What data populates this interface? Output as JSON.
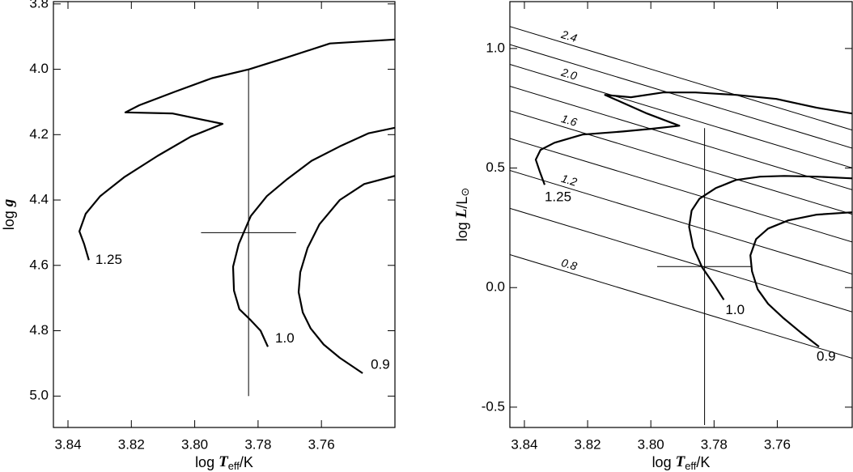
{
  "chart_data": [
    {
      "type": "line",
      "xlabel": {
        "pre": "log ",
        "var": "T",
        "sub": "eff",
        "post": "/K"
      },
      "ylabel": {
        "pre": "log ",
        "var": "g"
      },
      "xlim": [
        3.8446,
        3.7368
      ],
      "ylim": [
        5.096,
        3.793
      ],
      "xticks": [
        3.84,
        3.82,
        {
          "value": 3.8,
          "label": "3.80"
        },
        3.78,
        3.76
      ],
      "yticks": [
        3.8,
        {
          "value": 4,
          "label": "4.0"
        },
        4.2,
        4.4,
        4.6,
        4.8,
        {
          "value": 5,
          "label": "5.0"
        }
      ],
      "series": [
        {
          "name": "1.25",
          "color": "#000000",
          "x": [
            3.8334,
            3.8349,
            3.8364,
            3.8344,
            3.8298,
            3.8221,
            3.8117,
            3.8012,
            3.7912,
            3.8071,
            3.8219,
            3.8175,
            3.8063,
            3.7945,
            3.7828,
            3.7716,
            3.7573,
            3.7368
          ],
          "values": [
            4.584,
            4.535,
            4.496,
            4.442,
            4.388,
            4.329,
            4.265,
            4.206,
            4.167,
            4.135,
            4.132,
            4.11,
            4.069,
            4.027,
            4.0,
            3.966,
            3.921,
            3.909
          ]
        },
        {
          "name": "1.0",
          "color": "#000000",
          "x": [
            3.7769,
            3.7792,
            3.7823,
            3.7859,
            3.7876,
            3.7879,
            3.7861,
            3.7823,
            3.7772,
            3.7708,
            3.7631,
            3.7542,
            3.7452,
            3.7368
          ],
          "values": [
            4.849,
            4.8,
            4.768,
            4.734,
            4.677,
            4.604,
            4.535,
            4.449,
            4.388,
            4.336,
            4.28,
            4.236,
            4.196,
            4.179
          ]
        },
        {
          "name": "0.9",
          "color": "#000000",
          "x": [
            3.747,
            3.7542,
            3.7593,
            3.7634,
            3.7659,
            3.7672,
            3.7667,
            3.7644,
            3.7606,
            3.7542,
            3.7465,
            3.7368
          ],
          "values": [
            4.93,
            4.883,
            4.842,
            4.793,
            4.744,
            4.682,
            4.621,
            4.547,
            4.474,
            4.4,
            4.351,
            4.326
          ]
        }
      ],
      "error_bar": {
        "x": 3.783,
        "xerr": [
          0.015,
          0.015
        ],
        "y": 4.5,
        "yerr": [
          0.5,
          0.5
        ]
      }
    },
    {
      "type": "line",
      "xlabel": {
        "pre": "log ",
        "var": "T",
        "sub": "eff",
        "post": "/K"
      },
      "ylabel": {
        "pre": "log ",
        "var": "L",
        "post": "/L",
        "sub": "⊙"
      },
      "xlim": [
        3.8446,
        3.7363
      ],
      "ylim": [
        -0.585,
        1.196
      ],
      "xticks": [
        3.84,
        3.82,
        {
          "value": 3.8,
          "label": "3.80"
        },
        3.78,
        3.76
      ],
      "yticks": [
        -0.5,
        {
          "value": 0,
          "label": "0.0"
        },
        0.5,
        {
          "value": 1,
          "label": "1.0"
        }
      ],
      "series": [
        {
          "name": "1.25",
          "color": "#000000",
          "x": [
            3.8336,
            3.8351,
            3.8364,
            3.8349,
            3.8305,
            3.8216,
            3.8088,
            3.7999,
            3.791,
            3.8012,
            3.8145,
            3.8063,
            3.7961,
            3.7859,
            3.7731,
            3.7603,
            3.7475,
            3.7363
          ],
          "values": [
            0.43,
            0.484,
            0.535,
            0.576,
            0.606,
            0.64,
            0.653,
            0.664,
            0.677,
            0.728,
            0.806,
            0.796,
            0.816,
            0.816,
            0.806,
            0.789,
            0.752,
            0.728
          ]
        },
        {
          "name": "1.0",
          "color": "#000000",
          "x": [
            3.7769,
            3.7802,
            3.7838,
            3.7866,
            3.7879,
            3.7871,
            3.7846,
            3.7795,
            3.7731,
            3.7654,
            3.7578,
            3.7475,
            3.7363
          ],
          "values": [
            -0.051,
            0.017,
            0.085,
            0.169,
            0.254,
            0.322,
            0.372,
            0.416,
            0.45,
            0.464,
            0.467,
            0.464,
            0.457
          ]
        },
        {
          "name": "0.9",
          "color": "#000000",
          "x": [
            3.7468,
            3.7527,
            3.7583,
            3.7629,
            3.7662,
            3.768,
            3.7685,
            3.7667,
            3.7629,
            3.7565,
            3.7475,
            3.7363
          ],
          "values": [
            -0.247,
            -0.186,
            -0.125,
            -0.068,
            -0.007,
            0.068,
            0.135,
            0.203,
            0.247,
            0.281,
            0.305,
            0.315
          ]
        }
      ],
      "error_bar": {
        "x": 3.783,
        "xerr": [
          0.015,
          0.015
        ],
        "y": 0.088,
        "yerr": [
          0.663,
          0.579
        ]
      },
      "radius_lines": {
        "R": [
          0.8,
          1.0,
          1.2,
          1.4,
          1.6,
          1.8,
          2.0,
          2.2,
          2.4
        ],
        "labels": [
          "0.8",
          null,
          "1.2",
          null,
          "1.6",
          null,
          "2.0",
          null,
          "2.4"
        ]
      }
    }
  ]
}
